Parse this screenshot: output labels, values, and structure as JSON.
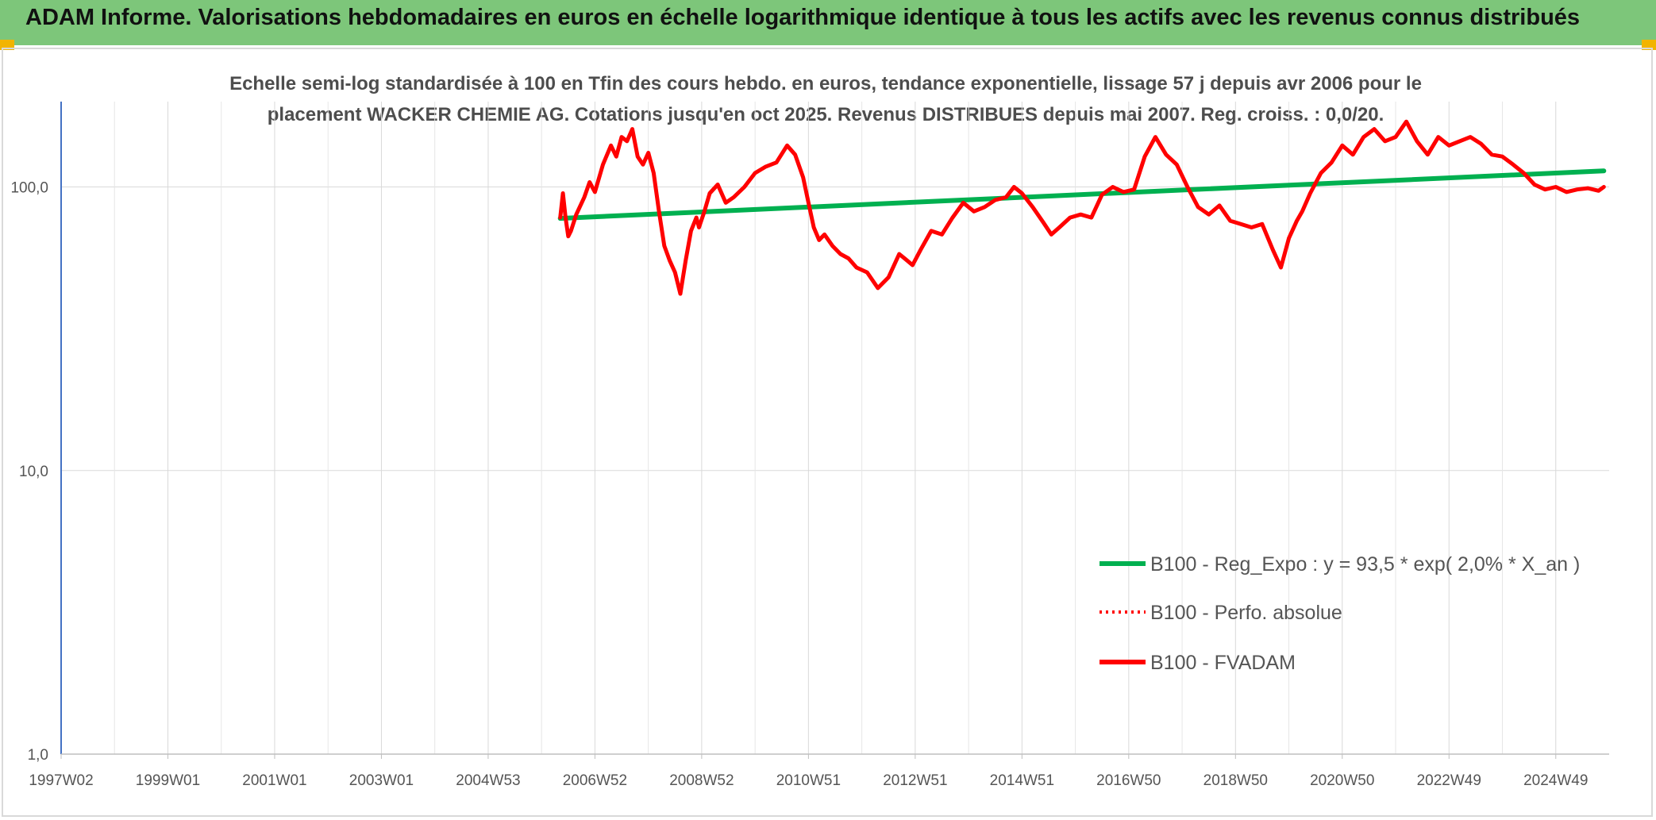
{
  "header": {
    "title": "ADAM Informe. Valorisations hebdomadaires en euros en échelle logarithmique identique à tous les actifs avec les revenus connus distribués"
  },
  "colors": {
    "header_bg": "#7dc67a",
    "accent_corner": "#f2b400",
    "series_fvadam": "#ff0000",
    "series_perfo": "#ff0000",
    "series_reg": "#00b050"
  },
  "chart_data": {
    "type": "line",
    "title_lines": [
      "Echelle semi-log standardisée à 100 en Tfin des cours hebdo. en euros, tendance exponentielle, lissage 57 j depuis avr 2006 pour le",
      "placement WACKER CHEMIE AG. Cotations jusqu'en oct 2025. Revenus DISTRIBUES depuis mai 2007. Reg. croiss. : 0,0/20."
    ],
    "y_scale": "log",
    "ylim": [
      1,
      200
    ],
    "y_ticks": [
      "1,0",
      "10,0",
      "100,0"
    ],
    "y_tick_values": [
      1,
      10,
      100
    ],
    "xlim": [
      1997.0,
      2026.0
    ],
    "x_ticks": [
      "1997W02",
      "1999W01",
      "2001W01",
      "2003W01",
      "2004W53",
      "2006W52",
      "2008W52",
      "2010W51",
      "2012W51",
      "2014W51",
      "2016W50",
      "2018W50",
      "2020W50",
      "2022W49",
      "2024W49"
    ],
    "x_tick_values": [
      1997.0,
      1999.0,
      2001.0,
      2003.0,
      2005.0,
      2007.0,
      2009.0,
      2011.0,
      2013.0,
      2015.0,
      2017.0,
      2019.0,
      2021.0,
      2023.0,
      2025.0
    ],
    "grid": true,
    "legend_position": "right",
    "legend": [
      "B100 - Reg_Expo : y = 93,5 * exp( 2,0% *  X_an )",
      "B100 - Perfo. absolue",
      "B100 - FVADAM"
    ],
    "series": [
      {
        "name": "B100 - FVADAM",
        "color": "#ff0000",
        "style": "solid",
        "x": [
          2006.35,
          2006.4,
          2006.45,
          2006.5,
          2006.55,
          2006.65,
          2006.8,
          2006.9,
          2007.0,
          2007.15,
          2007.3,
          2007.4,
          2007.5,
          2007.6,
          2007.7,
          2007.8,
          2007.9,
          2008.0,
          2008.1,
          2008.2,
          2008.3,
          2008.4,
          2008.5,
          2008.6,
          2008.7,
          2008.8,
          2008.9,
          2008.95,
          2009.05,
          2009.15,
          2009.3,
          2009.45,
          2009.6,
          2009.8,
          2010.0,
          2010.2,
          2010.4,
          2010.6,
          2010.75,
          2010.9,
          2011.0,
          2011.1,
          2011.2,
          2011.3,
          2011.45,
          2011.6,
          2011.75,
          2011.9,
          2012.1,
          2012.3,
          2012.5,
          2012.7,
          2012.85,
          2012.95,
          2013.1,
          2013.3,
          2013.5,
          2013.7,
          2013.9,
          2014.1,
          2014.3,
          2014.5,
          2014.7,
          2014.85,
          2015.0,
          2015.2,
          2015.4,
          2015.55,
          2015.7,
          2015.9,
          2016.1,
          2016.3,
          2016.5,
          2016.7,
          2016.9,
          2017.1,
          2017.3,
          2017.5,
          2017.7,
          2017.9,
          2018.1,
          2018.3,
          2018.5,
          2018.7,
          2018.9,
          2019.1,
          2019.3,
          2019.5,
          2019.7,
          2019.85,
          2020.0,
          2020.15,
          2020.25,
          2020.4,
          2020.6,
          2020.8,
          2021.0,
          2021.2,
          2021.4,
          2021.6,
          2021.8,
          2022.0,
          2022.2,
          2022.4,
          2022.6,
          2022.8,
          2023.0,
          2023.2,
          2023.4,
          2023.6,
          2023.8,
          2024.0,
          2024.2,
          2024.4,
          2024.6,
          2024.8,
          2025.0,
          2025.2,
          2025.4,
          2025.6,
          2025.8,
          2025.9
        ],
        "values": [
          78,
          95,
          78,
          67,
          70,
          80,
          92,
          104,
          96,
          120,
          140,
          128,
          150,
          145,
          160,
          128,
          120,
          132,
          112,
          82,
          62,
          55,
          50,
          42,
          55,
          70,
          78,
          72,
          82,
          95,
          102,
          88,
          92,
          100,
          112,
          118,
          122,
          140,
          130,
          108,
          88,
          72,
          65,
          68,
          62,
          58,
          56,
          52,
          50,
          44,
          48,
          58,
          55,
          53,
          60,
          70,
          68,
          78,
          88,
          82,
          85,
          90,
          92,
          100,
          95,
          85,
          75,
          68,
          72,
          78,
          80,
          78,
          94,
          100,
          96,
          98,
          128,
          150,
          130,
          120,
          100,
          85,
          80,
          86,
          76,
          74,
          72,
          74,
          60,
          52,
          66,
          76,
          82,
          95,
          112,
          122,
          140,
          130,
          150,
          160,
          145,
          150,
          170,
          145,
          130,
          150,
          140,
          145,
          150,
          142,
          130,
          128,
          120,
          112,
          102,
          98,
          100,
          96,
          98,
          99,
          97,
          100
        ]
      },
      {
        "name": "B100 - Reg_Expo : y = 93,5 * exp( 2,0% *  X_an )",
        "color": "#00b050",
        "style": "solid",
        "x": [
          2006.35,
          2025.9
        ],
        "values": [
          77.5,
          114
        ]
      },
      {
        "name": "B100 - Perfo. absolue",
        "color": "#ff0000",
        "style": "dotted",
        "x": [],
        "values": []
      }
    ]
  }
}
